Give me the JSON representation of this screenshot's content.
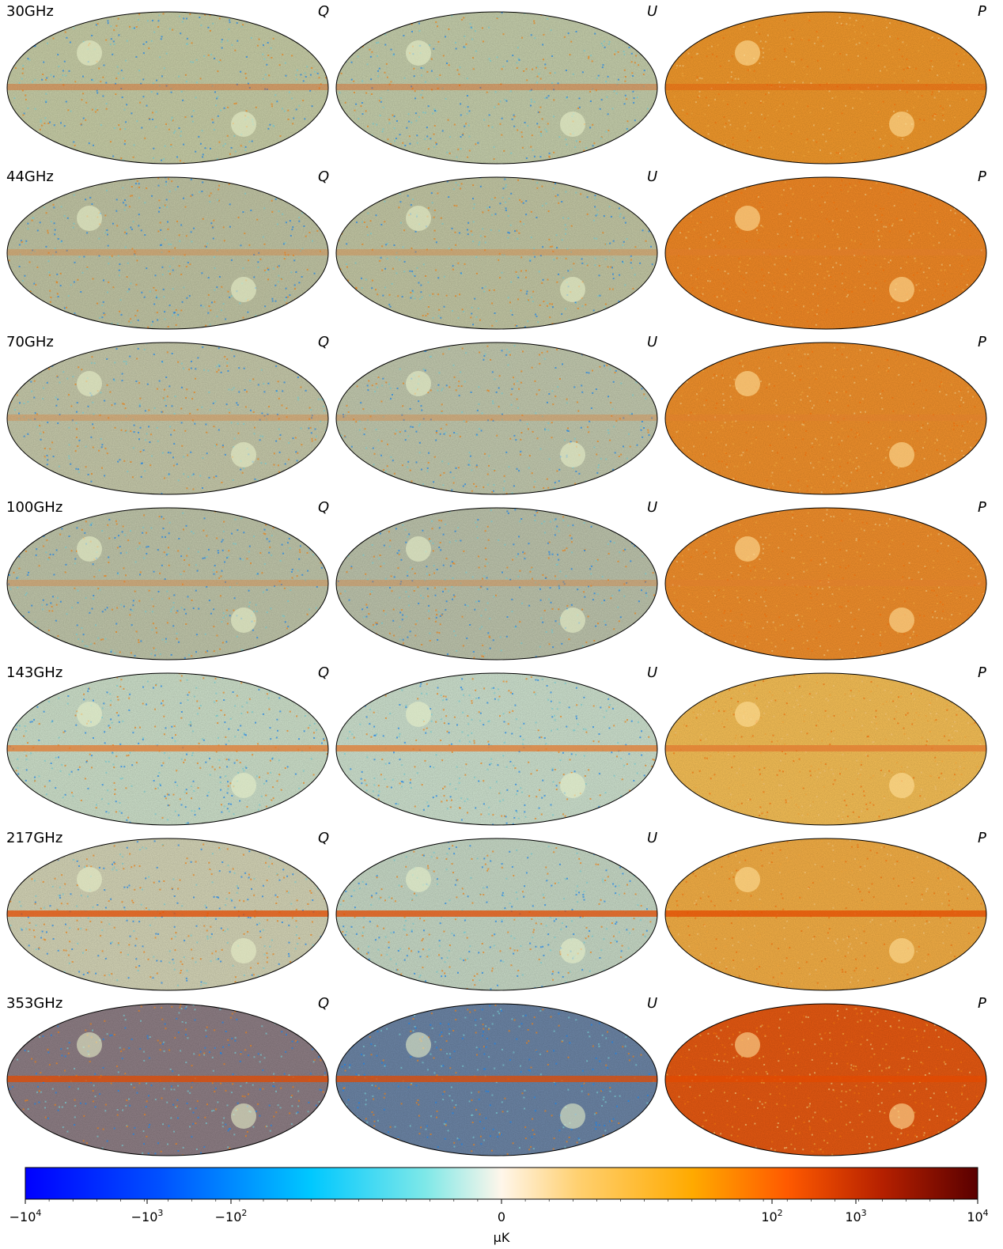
{
  "rows": [
    {
      "frequency": "30GHz",
      "fields": [
        "Q",
        "U",
        "P"
      ],
      "tint": {
        "Q": "#c9cfa8",
        "U": "#c7d0ad",
        "P": "#f39a2c"
      }
    },
    {
      "frequency": "44GHz",
      "fields": [
        "Q",
        "U",
        "P"
      ],
      "tint": {
        "Q": "#c3c7a6",
        "U": "#c5c9a6",
        "P": "#f38a26"
      }
    },
    {
      "frequency": "70GHz",
      "fields": [
        "Q",
        "U",
        "P"
      ],
      "tint": {
        "Q": "#c8cbac",
        "U": "#c4cbb0",
        "P": "#f3922c"
      }
    },
    {
      "frequency": "100GHz",
      "fields": [
        "Q",
        "U",
        "P"
      ],
      "tint": {
        "Q": "#c2c8ac",
        "U": "#bfc6ae",
        "P": "#f3902c"
      }
    },
    {
      "frequency": "143GHz",
      "fields": [
        "Q",
        "U",
        "P"
      ],
      "tint": {
        "Q": "#cfe2cc",
        "U": "#cfe3d0",
        "P": "#f8c157"
      }
    },
    {
      "frequency": "217GHz",
      "fields": [
        "Q",
        "U",
        "P"
      ],
      "tint": {
        "Q": "#d6d6b8",
        "U": "#c9dbc8",
        "P": "#f6b046"
      }
    },
    {
      "frequency": "353GHz",
      "fields": [
        "Q",
        "U",
        "P"
      ],
      "tint": {
        "Q": "#8f7f86",
        "U": "#6d86a7",
        "P": "#e85a12"
      }
    }
  ],
  "colorbar": {
    "ticks": [
      "−10",
      "−10",
      "−10",
      "0",
      "10",
      "10",
      "10"
    ],
    "tick_exponents": [
      "4",
      "3",
      "2",
      "",
      "2",
      "3",
      "4"
    ],
    "unit": "μK",
    "colors": [
      "#0000ff",
      "#0080ff",
      "#00d6ff",
      "#fff5e8",
      "#ffb000",
      "#ff5a00",
      "#b01a00",
      "#5a0000"
    ]
  }
}
